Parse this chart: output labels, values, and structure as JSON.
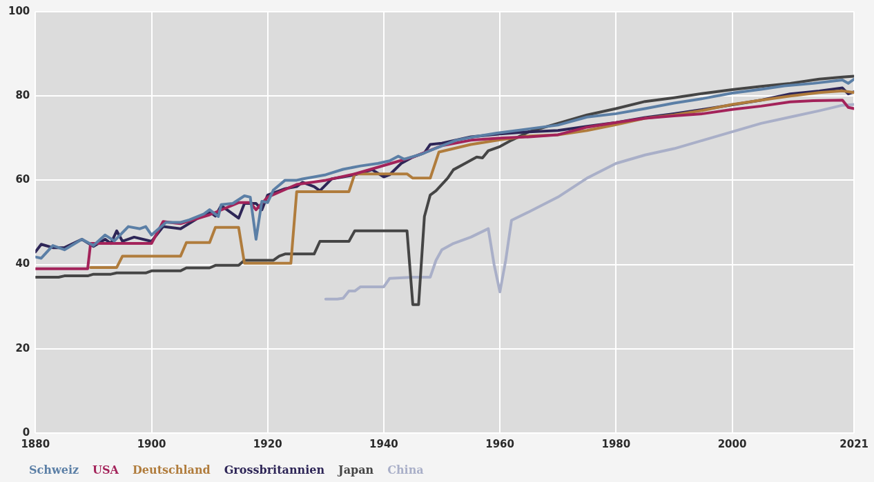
{
  "chart_data": {
    "type": "line",
    "xlim": [
      1880,
      2021
    ],
    "xticks": [
      1880,
      1900,
      1920,
      1940,
      1960,
      1980,
      2000,
      2021
    ],
    "ylim": [
      0,
      100
    ],
    "yticks": [
      0,
      20,
      40,
      60,
      80,
      100
    ],
    "grid": true,
    "legend": "bottom left",
    "marker": "none",
    "line_style": "solid",
    "series": [
      {
        "name": "Schweiz",
        "color": "#5b7fa6",
        "x": [
          1880,
          1881,
          1883,
          1885,
          1888,
          1890,
          1892,
          1893.6,
          1896,
          1898,
          1899,
          1900,
          1902.5,
          1905,
          1906.5,
          1909,
          1910,
          1911.5,
          1912,
          1914,
          1916,
          1917,
          1918,
          1919,
          1920,
          1921,
          1923,
          1925,
          1926,
          1930,
          1933,
          1936,
          1939,
          1941,
          1942.5,
          1943.5,
          1946.5,
          1949.5,
          1952.5,
          1955.5,
          1959.5,
          1965,
          1970,
          1975,
          1980,
          1985,
          1990,
          1995,
          2000,
          2005,
          2009,
          2014,
          2019,
          2020,
          2021
        ],
        "values": [
          41.8,
          41.5,
          44.5,
          43.5,
          46,
          44.5,
          47,
          45.6,
          49,
          48.5,
          49,
          47,
          50,
          50,
          50.6,
          52,
          53,
          51.4,
          54.2,
          54.5,
          56.3,
          56,
          46,
          55,
          54.7,
          57.7,
          60,
          60,
          60.3,
          61.3,
          62.6,
          63.4,
          64,
          64.6,
          65.7,
          65,
          66.2,
          67.9,
          69.5,
          70.3,
          71.2,
          72.2,
          73.1,
          75,
          75.8,
          77,
          78.3,
          79.4,
          80.7,
          81.6,
          82.4,
          83,
          83.8,
          83,
          84
        ]
      },
      {
        "name": "USA",
        "color": "#a3235a",
        "x": [
          1880,
          1889,
          1889.5,
          1900,
          1902,
          1905,
          1910,
          1915,
          1917,
          1918,
          1920,
          1925,
          1930,
          1935,
          1940,
          1945,
          1950,
          1955,
          1960,
          1965,
          1970,
          1975,
          1980,
          1985,
          1990,
          1995,
          2000,
          2005,
          2010,
          2014,
          2019,
          2020,
          2021
        ],
        "values": [
          39,
          39,
          45,
          45,
          50.2,
          49.7,
          51.8,
          54.7,
          54.7,
          53,
          56,
          59,
          60,
          61.5,
          63.5,
          65.5,
          68.2,
          69.5,
          70,
          70.3,
          70.8,
          72.6,
          73.7,
          74.7,
          75.3,
          75.8,
          76.8,
          77.6,
          78.6,
          78.9,
          79,
          77.3,
          77
        ]
      },
      {
        "name": "Deutschland",
        "color": "#b07c3c",
        "x": [
          1889.5,
          1894,
          1895,
          1905,
          1906,
          1910,
          1911,
          1915,
          1916,
          1924,
          1925,
          1934,
          1935,
          1944,
          1945,
          1948,
          1949.5,
          1955,
          1960,
          1965,
          1970,
          1975,
          1980,
          1985,
          1990,
          1995,
          2000,
          2005,
          2010,
          2015,
          2019,
          2020,
          2021
        ],
        "values": [
          39.3,
          39.3,
          42,
          42,
          45.2,
          45.2,
          48.8,
          48.8,
          40.3,
          40.3,
          57.3,
          57.3,
          61.5,
          61.5,
          60.5,
          60.5,
          66.7,
          68.5,
          69.6,
          70.5,
          70.8,
          71.8,
          73.2,
          74.7,
          75.5,
          76.6,
          78,
          79,
          80,
          80.8,
          81.2,
          81,
          80.8
        ]
      },
      {
        "name": "Grossbritannien",
        "color": "#2e2657",
        "x": [
          1880,
          1881,
          1883,
          1885,
          1888,
          1890,
          1892,
          1893,
          1894,
          1895,
          1897,
          1900,
          1902,
          1905,
          1908,
          1910,
          1911,
          1912,
          1915,
          1916,
          1918,
          1919,
          1920,
          1923,
          1925,
          1926,
          1928,
          1929,
          1931,
          1935,
          1938,
          1940,
          1941,
          1943,
          1945,
          1947,
          1948,
          1950,
          1955,
          1960,
          1965,
          1970,
          1975,
          1980,
          1985,
          1990,
          1995,
          2000,
          2005,
          2010,
          2015,
          2019,
          2020,
          2021
        ],
        "values": [
          43,
          44.8,
          44,
          44,
          46,
          44.3,
          46,
          45,
          48,
          45.5,
          46.5,
          45.5,
          49,
          48.5,
          51,
          52.5,
          51.5,
          54,
          51,
          54.5,
          54.5,
          53,
          56.5,
          58,
          58.5,
          59.5,
          58.5,
          57.5,
          60.3,
          61.3,
          62.5,
          60.8,
          61.3,
          64,
          65.5,
          66.5,
          68.5,
          68.8,
          70.3,
          71,
          71.5,
          71.8,
          72.8,
          73.7,
          74.9,
          75.8,
          76.8,
          77.9,
          79,
          80.5,
          81.2,
          81.9,
          80.5,
          81
        ]
      },
      {
        "name": "Japan",
        "color": "#454545",
        "x": [
          1880,
          1884,
          1885,
          1889,
          1890,
          1893,
          1894,
          1899,
          1900,
          1905,
          1906,
          1910,
          1911,
          1915,
          1916,
          1921,
          1922,
          1923,
          1928,
          1929,
          1934,
          1935,
          1944,
          1945,
          1946,
          1947,
          1948,
          1949,
          1951,
          1952,
          1954,
          1956,
          1957,
          1958,
          1960,
          1962,
          1965,
          1970,
          1975,
          1980,
          1985,
          1990,
          1995,
          2000,
          2005,
          2010,
          2015,
          2019,
          2021
        ],
        "values": [
          37,
          37,
          37.3,
          37.3,
          37.7,
          37.7,
          38,
          38,
          38.5,
          38.5,
          39.2,
          39.2,
          39.8,
          39.8,
          41,
          41,
          42,
          42.5,
          42.5,
          45.5,
          45.5,
          48,
          48,
          30.5,
          30.5,
          51.4,
          56.5,
          57.5,
          60.5,
          62.5,
          64,
          65.5,
          65.3,
          67,
          68,
          69.5,
          71.5,
          73.5,
          75.5,
          77,
          78.7,
          79.6,
          80.6,
          81.5,
          82.3,
          83,
          84,
          84.5,
          84.7
        ]
      },
      {
        "name": "China",
        "color": "#a9afc8",
        "x": [
          1930,
          1932,
          1933,
          1934,
          1935,
          1936,
          1940,
          1941,
          1945,
          1948,
          1949,
          1950,
          1952,
          1955,
          1958,
          1959,
          1960,
          1961,
          1962,
          1965,
          1970,
          1975,
          1980,
          1985,
          1990,
          1995,
          2000,
          2005,
          2010,
          2015,
          2019,
          2021
        ],
        "values": [
          31.8,
          31.8,
          32,
          33.7,
          33.7,
          34.7,
          34.7,
          36.7,
          37,
          37,
          41,
          43.5,
          45,
          46.5,
          48.5,
          40,
          33.5,
          41,
          50.5,
          52.5,
          56,
          60.5,
          64,
          66,
          67.5,
          69.5,
          71.5,
          73.5,
          75,
          76.5,
          77.8,
          78
        ]
      }
    ]
  }
}
